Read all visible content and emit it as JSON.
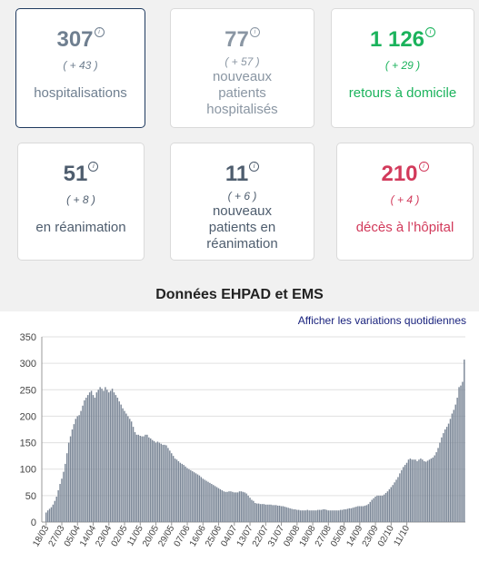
{
  "stats": [
    {
      "value": "307",
      "delta": "( + 43 )",
      "label": "hospitalisations",
      "color": "#6f7f90",
      "selected": true
    },
    {
      "value": "77",
      "delta": "( + 57 )",
      "label": "nouveaux patients hospitalisés",
      "color": "#8a96a3",
      "selected": false
    },
    {
      "value": "1 126",
      "delta": "( + 29 )",
      "label": "retours à domicile",
      "color": "#1bb35c",
      "selected": false
    },
    {
      "value": "51",
      "delta": "( + 8 )",
      "label": "en réanimation",
      "color": "#4e5d6e",
      "selected": false
    },
    {
      "value": "11",
      "delta": "( + 6 )",
      "label": "nouveaux patients en réanimation",
      "color": "#4e5d6e",
      "selected": false
    },
    {
      "value": "210",
      "delta": "( + 4 )",
      "label": "décès à l’hôpital",
      "color": "#d23a5b",
      "selected": false
    }
  ],
  "section_title": "Données EHPAD et EMS",
  "variations_link": "Afficher les variations quotidiennes",
  "chart_data": {
    "type": "bar",
    "ylim": [
      0,
      350
    ],
    "y_ticks": [
      "0",
      "50",
      "100",
      "150",
      "200",
      "250",
      "300",
      "350"
    ],
    "x_tick_labels": [
      "18/03",
      "27/03",
      "05/04",
      "14/04",
      "23/04",
      "02/05",
      "11/05",
      "20/05",
      "29/05",
      "07/06",
      "16/06",
      "25/06",
      "04/07",
      "13/07",
      "22/07",
      "31/07",
      "09/08",
      "18/08",
      "27/08",
      "05/09",
      "14/09",
      "23/09",
      "02/10",
      "11/10"
    ],
    "bar_color": "#7b8797",
    "grid": true,
    "series": [
      {
        "values": [
          18,
          22,
          25,
          28,
          33,
          40,
          48,
          60,
          72,
          82,
          95,
          110,
          130,
          150,
          162,
          175,
          185,
          195,
          200,
          202,
          210,
          220,
          230,
          235,
          240,
          245,
          248,
          240,
          235,
          245,
          250,
          255,
          252,
          248,
          255,
          250,
          245,
          248,
          252,
          245,
          240,
          235,
          228,
          222,
          215,
          210,
          205,
          200,
          195,
          190,
          180,
          170,
          165,
          165,
          163,
          162,
          162,
          165,
          165,
          160,
          158,
          155,
          153,
          150,
          152,
          150,
          148,
          146,
          146,
          145,
          140,
          135,
          130,
          125,
          120,
          118,
          115,
          112,
          110,
          108,
          105,
          102,
          100,
          98,
          96,
          94,
          92,
          90,
          88,
          85,
          82,
          80,
          78,
          76,
          74,
          72,
          70,
          68,
          66,
          64,
          62,
          60,
          58,
          57,
          57,
          58,
          58,
          57,
          56,
          56,
          56,
          58,
          58,
          57,
          56,
          54,
          50,
          46,
          42,
          40,
          36,
          35,
          35,
          34,
          34,
          34,
          33,
          33,
          33,
          33,
          32,
          32,
          32,
          31,
          31,
          30,
          30,
          29,
          28,
          27,
          26,
          25,
          24,
          24,
          23,
          23,
          22,
          22,
          22,
          22,
          23,
          22,
          22,
          22,
          22,
          22,
          23,
          23,
          23,
          24,
          24,
          23,
          22,
          22,
          22,
          22,
          22,
          22,
          22,
          23,
          23,
          24,
          24,
          25,
          26,
          26,
          27,
          28,
          29,
          30,
          30,
          30,
          30,
          31,
          32,
          34,
          38,
          42,
          45,
          48,
          50,
          50,
          50,
          50,
          52,
          55,
          58,
          62,
          66,
          70,
          75,
          80,
          85,
          92,
          98,
          104,
          108,
          112,
          118,
          120,
          118,
          118,
          118,
          115,
          118,
          120,
          118,
          115,
          114,
          116,
          118,
          120,
          122,
          126,
          132,
          140,
          150,
          160,
          168,
          175,
          180,
          186,
          195,
          205,
          212,
          222,
          235,
          255,
          258,
          265,
          307
        ]
      }
    ]
  }
}
